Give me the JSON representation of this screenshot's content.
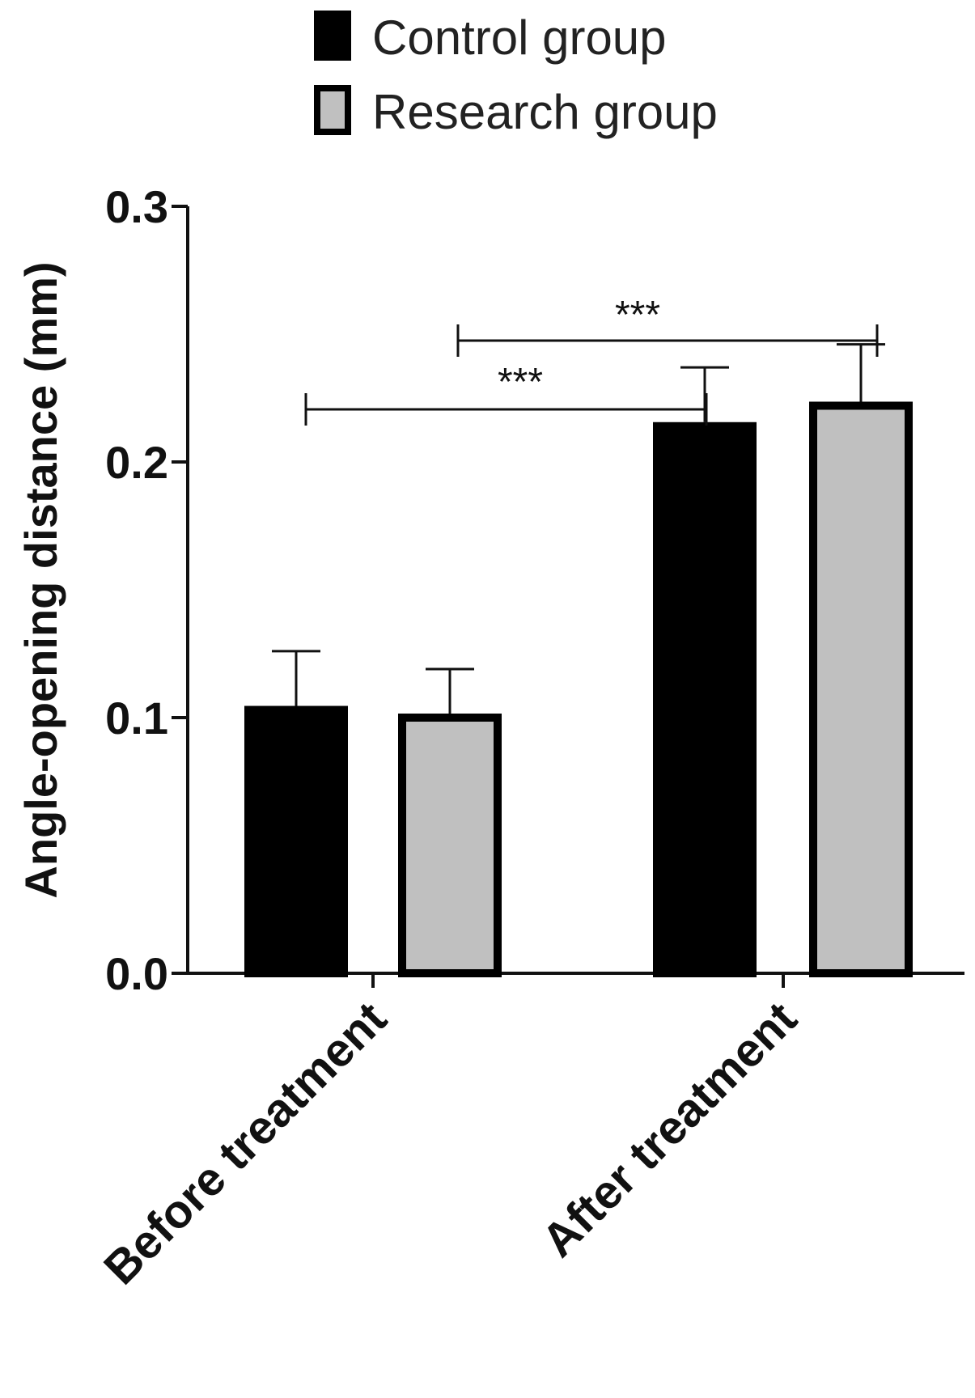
{
  "chart_data": {
    "type": "bar",
    "categories": [
      "Before treatment",
      "After treatment"
    ],
    "series": [
      {
        "name": "Control group",
        "values": [
          0.103,
          0.214
        ],
        "errors": [
          0.023,
          0.023
        ],
        "color": "#000000"
      },
      {
        "name": "Research group",
        "values": [
          0.1,
          0.222
        ],
        "errors": [
          0.019,
          0.024
        ],
        "color": "#c0c0c0"
      }
    ],
    "ylabel": "Angle-opening distance (mm)",
    "xlabel": "",
    "ylim": [
      0.0,
      0.3
    ],
    "yticks": [
      "0.0",
      "0.1",
      "0.2",
      "0.3"
    ],
    "legend_position": "top",
    "grid": false,
    "significance": [
      {
        "label": "***",
        "from": "Control group / Before treatment",
        "to": "Control group / After treatment"
      },
      {
        "label": "***",
        "from": "Research group / Before treatment",
        "to": "Research group / After treatment"
      }
    ]
  }
}
